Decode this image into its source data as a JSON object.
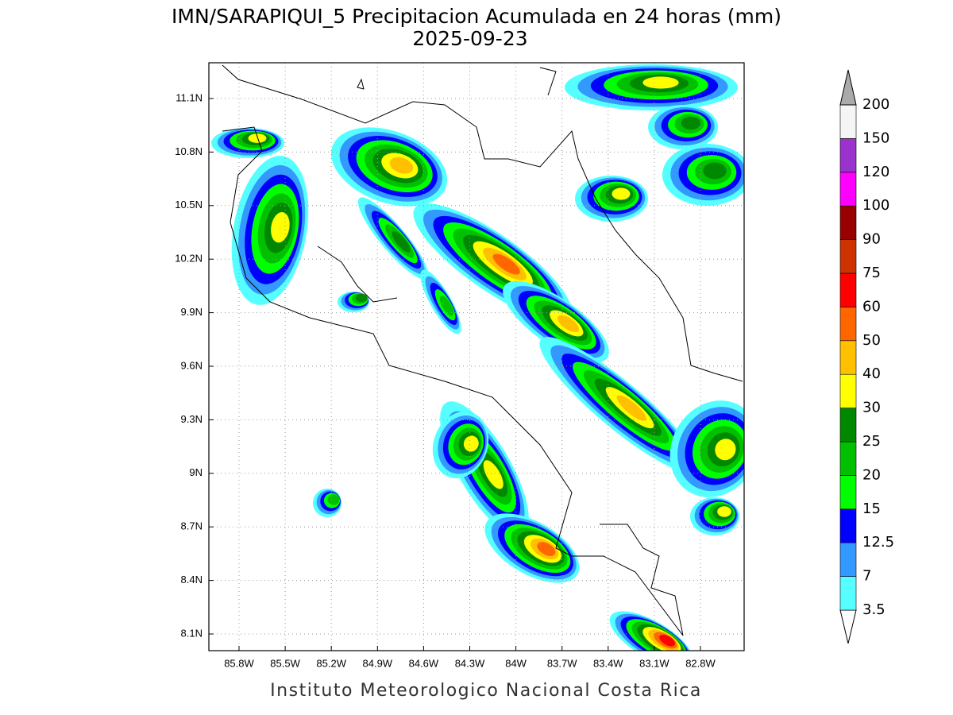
{
  "title": "IMN/SARAPIQUI_5 Precipitacion Acumulada en 24 horas (mm)",
  "date": "2025-09-23",
  "map": {
    "xticks": [
      "85.8W",
      "85.5W",
      "85.2W",
      "84.9W",
      "84.6W",
      "84.3W",
      "84W",
      "83.7W",
      "83.4W",
      "83.1W",
      "82.8W"
    ],
    "yticks": [
      "11.1N",
      "10.8N",
      "10.5N",
      "10.2N",
      "9.9N",
      "9.6N",
      "9.3N",
      "9N",
      "8.7N",
      "8.4N",
      "8.1N"
    ]
  },
  "colorbar": {
    "levels": [
      "3.5",
      "7",
      "12.5",
      "15",
      "20",
      "25",
      "30",
      "40",
      "50",
      "60",
      "75",
      "90",
      "100",
      "120",
      "150",
      "200"
    ],
    "colors": [
      "#55ffff",
      "#3399ff",
      "#0000ff",
      "#00ff00",
      "#00c000",
      "#008800",
      "#ffff00",
      "#ffc000",
      "#ff6600",
      "#ff0000",
      "#cc3300",
      "#990000",
      "#ff00ff",
      "#9933cc",
      "#f5f5f5"
    ],
    "under_color": "#ffffff",
    "over_color": "#aaaaaa"
  },
  "footer": "Instituto Meteorologico Nacional Costa Rica"
}
